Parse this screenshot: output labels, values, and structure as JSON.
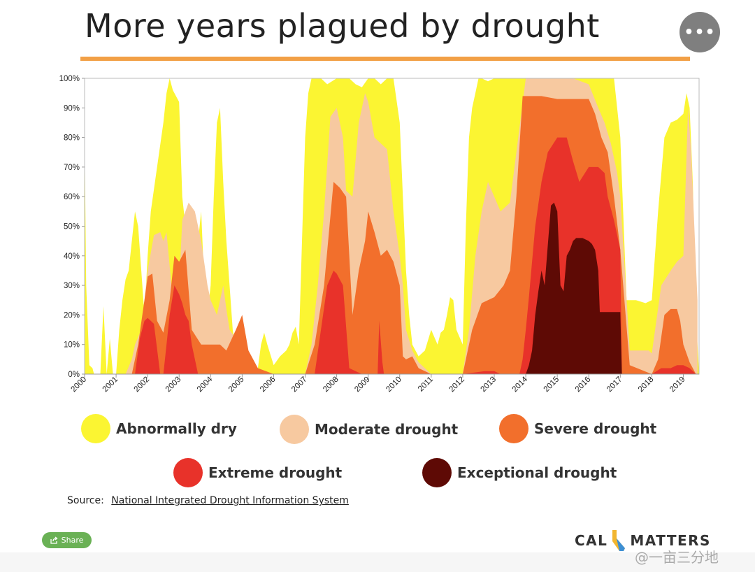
{
  "title": "More years plagued by drought",
  "menu_icon": "•••",
  "chart_data": {
    "type": "area",
    "stacked_cumulative": true,
    "x_unit": "year",
    "xlim": [
      2000,
      2019.5
    ],
    "ylim": [
      0,
      100
    ],
    "y_ticks": [
      "0%",
      "10%",
      "20%",
      "30%",
      "40%",
      "50%",
      "60%",
      "70%",
      "80%",
      "90%",
      "100%"
    ],
    "y_tick_values": [
      0,
      10,
      20,
      30,
      40,
      50,
      60,
      70,
      80,
      90,
      100
    ],
    "x_ticks": [
      "2000",
      "2001",
      "2002",
      "2003",
      "2004",
      "2005",
      "2006",
      "2007",
      "2008",
      "2009",
      "2010",
      "2011",
      "2012",
      "2013",
      "2014",
      "2015",
      "2016",
      "2017",
      "2018",
      "2019"
    ],
    "x_tick_values": [
      2000,
      2001,
      2002,
      2003,
      2004,
      2005,
      2006,
      2007,
      2008,
      2009,
      2010,
      2011,
      2012,
      2013,
      2014,
      2015,
      2016,
      2017,
      2018,
      2019
    ],
    "series": [
      {
        "name": "Abnormally dry",
        "color": "#fbf532",
        "x": [
          2000,
          2000.05,
          2000.15,
          2000.25,
          2000.3,
          2000.5,
          2000.6,
          2000.7,
          2000.8,
          2000.9,
          2001.0,
          2001.1,
          2001.2,
          2001.3,
          2001.4,
          2001.5,
          2001.6,
          2001.7,
          2001.8,
          2001.9,
          2002.0,
          2002.1,
          2002.3,
          2002.5,
          2002.6,
          2002.7,
          2002.8,
          2003.0,
          2003.1,
          2003.3,
          2003.5,
          2003.6,
          2003.7,
          2003.8,
          2003.9,
          2004.0,
          2004.1,
          2004.2,
          2004.3,
          2004.4,
          2004.5,
          2004.6,
          2004.7,
          2004.8,
          2004.9,
          2005.0,
          2005.1,
          2005.2,
          2005.3,
          2005.4,
          2005.5,
          2005.6,
          2005.7,
          2005.8,
          2006.0,
          2006.2,
          2006.4,
          2006.5,
          2006.6,
          2006.7,
          2006.8,
          2007.0,
          2007.1,
          2007.2,
          2007.3,
          2007.5,
          2007.7,
          2008.0,
          2008.2,
          2008.4,
          2008.6,
          2008.8,
          2009.0,
          2009.2,
          2009.4,
          2009.6,
          2009.8,
          2010.0,
          2010.1,
          2010.2,
          2010.3,
          2010.4,
          2010.5,
          2010.6,
          2010.8,
          2011.0,
          2011.2,
          2011.3,
          2011.4,
          2011.5,
          2011.6,
          2011.7,
          2011.8,
          2012.0,
          2012.1,
          2012.2,
          2012.3,
          2012.4,
          2012.5,
          2012.6,
          2012.8,
          2013.0,
          2013.2,
          2013.4,
          2013.6,
          2013.8,
          2014.0,
          2014.5,
          2015.0,
          2015.5,
          2016.0,
          2016.3,
          2016.5,
          2016.7,
          2016.8,
          2016.9,
          2017.0,
          2017.2,
          2017.5,
          2017.8,
          2018.0,
          2018.2,
          2018.4,
          2018.6,
          2018.8,
          2019.0,
          2019.1,
          2019.2,
          2019.3,
          2019.4,
          2019.5
        ],
        "cumulative_values": [
          80,
          30,
          3,
          2,
          0,
          0,
          23,
          0,
          12,
          0,
          0,
          15,
          25,
          32,
          35,
          45,
          55,
          50,
          35,
          20,
          40,
          55,
          70,
          85,
          95,
          100,
          96,
          92,
          60,
          40,
          30,
          45,
          55,
          30,
          20,
          30,
          60,
          85,
          90,
          65,
          45,
          30,
          15,
          8,
          4,
          2,
          0,
          0,
          0,
          0,
          2,
          10,
          14,
          10,
          3,
          6,
          8,
          10,
          14,
          16,
          10,
          80,
          95,
          100,
          100,
          100,
          98,
          100,
          100,
          100,
          98,
          97,
          100,
          100,
          98,
          100,
          100,
          85,
          60,
          35,
          20,
          10,
          8,
          6,
          8,
          15,
          10,
          14,
          15,
          20,
          26,
          25,
          15,
          10,
          50,
          80,
          90,
          95,
          100,
          100,
          99,
          100,
          100,
          100,
          100,
          100,
          100,
          100,
          100,
          100,
          100,
          100,
          100,
          100,
          100,
          90,
          80,
          25,
          25,
          24,
          25,
          55,
          80,
          85,
          86,
          88,
          95,
          90,
          65,
          20,
          0
        ],
        "_note": "Values read as cumulative top edge of the stacked area (percent of state)."
      },
      {
        "name": "Moderate drought",
        "color": "#f7c9a0",
        "x": [
          2000,
          2001.0,
          2001.3,
          2001.5,
          2001.6,
          2001.8,
          2002.0,
          2002.2,
          2002.4,
          2002.5,
          2002.6,
          2002.8,
          2003.0,
          2003.1,
          2003.3,
          2003.5,
          2003.7,
          2003.9,
          2004.0,
          2004.2,
          2004.4,
          2004.5,
          2004.6,
          2004.8,
          2005.0,
          2005.1,
          2005.3,
          2005.6,
          2006.0,
          2006.5,
          2007.0,
          2007.2,
          2007.4,
          2007.6,
          2007.8,
          2008.0,
          2008.2,
          2008.3,
          2008.5,
          2008.7,
          2008.9,
          2009.0,
          2009.2,
          2009.4,
          2009.6,
          2009.8,
          2010.0,
          2010.1,
          2010.2,
          2010.4,
          2010.6,
          2010.8,
          2011.0,
          2011.5,
          2012.0,
          2012.2,
          2012.4,
          2012.6,
          2012.8,
          2013.0,
          2013.2,
          2013.5,
          2014.0,
          2014.5,
          2015.0,
          2015.5,
          2016.0,
          2016.3,
          2016.5,
          2016.7,
          2016.9,
          2017.0,
          2017.3,
          2017.6,
          2017.9,
          2018.0,
          2018.3,
          2018.6,
          2018.8,
          2019.0,
          2019.15,
          2019.25,
          2019.35,
          2019.45
        ],
        "cumulative_values": [
          0,
          0,
          0,
          5,
          10,
          15,
          35,
          47,
          48,
          45,
          48,
          25,
          30,
          52,
          58,
          55,
          45,
          30,
          25,
          20,
          30,
          22,
          15,
          12,
          3,
          0,
          0,
          0,
          0,
          0,
          0,
          10,
          30,
          55,
          87,
          90,
          80,
          62,
          60,
          85,
          95,
          92,
          80,
          78,
          76,
          55,
          40,
          30,
          15,
          8,
          4,
          2,
          0,
          0,
          0,
          15,
          40,
          55,
          65,
          60,
          55,
          58,
          100,
          100,
          100,
          100,
          98,
          90,
          85,
          78,
          68,
          60,
          8,
          8,
          8,
          7,
          30,
          35,
          38,
          40,
          90,
          75,
          50,
          25
        ],
        "_note": "Cumulative top edge of moderate (and worse) drought."
      },
      {
        "name": "Severe drought",
        "color": "#f26f2c",
        "x": [
          2000,
          2001.5,
          2001.7,
          2001.9,
          2002.0,
          2002.15,
          2002.3,
          2002.5,
          2002.7,
          2002.85,
          2003.0,
          2003.2,
          2003.4,
          2003.7,
          2004.0,
          2004.3,
          2004.5,
          2004.8,
          2005.0,
          2005.2,
          2005.5,
          2006.0,
          2007.0,
          2007.3,
          2007.6,
          2007.9,
          2008.1,
          2008.3,
          2008.5,
          2008.7,
          2008.9,
          2009.0,
          2009.2,
          2009.4,
          2009.6,
          2009.8,
          2010.0,
          2010.1,
          2010.2,
          2010.4,
          2010.6,
          2011.0,
          2012.0,
          2012.3,
          2012.6,
          2013.0,
          2013.3,
          2013.5,
          2013.7,
          2013.9,
          2014.0,
          2014.5,
          2015.0,
          2015.5,
          2016.0,
          2016.2,
          2016.4,
          2016.6,
          2016.8,
          2017.0,
          2017.3,
          2018.0,
          2018.2,
          2018.4,
          2018.6,
          2018.8,
          2018.9,
          2019.0,
          2019.2,
          2019.3,
          2019.4
        ],
        "cumulative_values": [
          0,
          0,
          10,
          25,
          33,
          34,
          18,
          14,
          25,
          40,
          38,
          42,
          15,
          10,
          10,
          10,
          8,
          15,
          20,
          8,
          2,
          0,
          0,
          10,
          30,
          65,
          63,
          60,
          20,
          35,
          45,
          55,
          48,
          40,
          42,
          38,
          30,
          6,
          5,
          6,
          2,
          0,
          0,
          15,
          24,
          26,
          30,
          35,
          60,
          94,
          94,
          94,
          93,
          93,
          93,
          88,
          80,
          75,
          60,
          42,
          3,
          0,
          5,
          20,
          22,
          22,
          18,
          10,
          4,
          2,
          0
        ],
        "_note": "Cumulative top edge of severe (and worse) drought."
      },
      {
        "name": "Extreme drought",
        "color": "#e8322a",
        "x": [
          2000,
          2001.6,
          2001.75,
          2001.9,
          2002.0,
          2002.1,
          2002.2,
          2002.4,
          2002.5,
          2002.7,
          2002.85,
          2003.0,
          2003.1,
          2003.2,
          2003.3,
          2003.4,
          2003.6,
          2006.0,
          2007.0,
          2007.3,
          2007.5,
          2007.7,
          2007.9,
          2008.0,
          2008.2,
          2008.4,
          2008.8,
          2009.3,
          2009.35,
          2009.45,
          2009.5,
          2010.0,
          2012.0,
          2012.7,
          2012.8,
          2013.0,
          2013.2,
          2013.8,
          2013.9,
          2014.0,
          2014.1,
          2014.3,
          2014.5,
          2014.7,
          2015.0,
          2015.3,
          2015.5,
          2015.7,
          2016.0,
          2016.3,
          2016.5,
          2016.6,
          2016.8,
          2017.0,
          2017.05,
          2018.0,
          2018.3,
          2018.6,
          2018.8,
          2019.0,
          2019.2,
          2019.4
        ],
        "cumulative_values": [
          0,
          0,
          12,
          18,
          19,
          18,
          17,
          0,
          0,
          20,
          30,
          27,
          24,
          20,
          18,
          10,
          0,
          0,
          0,
          0,
          15,
          30,
          35,
          34,
          30,
          2,
          0,
          0,
          18,
          4,
          0,
          0,
          0,
          1,
          1,
          1,
          0,
          0,
          5,
          15,
          26,
          50,
          65,
          75,
          80,
          80,
          72,
          65,
          70,
          70,
          68,
          60,
          52,
          42,
          0,
          0,
          2,
          2,
          3,
          3,
          2,
          0
        ],
        "_note": "Cumulative top edge of extreme (and worse) drought."
      },
      {
        "name": "Exceptional drought",
        "color": "#5e0a05",
        "x": [
          2000,
          2014.0,
          2014.1,
          2014.2,
          2014.3,
          2014.4,
          2014.5,
          2014.6,
          2014.8,
          2014.9,
          2015.0,
          2015.1,
          2015.2,
          2015.3,
          2015.4,
          2015.5,
          2015.6,
          2015.8,
          2016.0,
          2016.1,
          2016.2,
          2016.3,
          2016.35,
          2016.5,
          2016.7,
          2016.9,
          2017.0,
          2017.05
        ],
        "cumulative_values": [
          0,
          0,
          3,
          8,
          20,
          28,
          35,
          30,
          57,
          58,
          55,
          30,
          28,
          40,
          42,
          45,
          46,
          46,
          45,
          44,
          42,
          35,
          21,
          21,
          21,
          21,
          21,
          0
        ],
        "_note": "Top edge of exceptional drought."
      }
    ]
  },
  "legend": [
    {
      "label": "Abnormally dry",
      "color": "#fbf532"
    },
    {
      "label": "Moderate drought",
      "color": "#f7c9a0"
    },
    {
      "label": "Severe drought",
      "color": "#f26f2c"
    },
    {
      "label": "Extreme drought",
      "color": "#e8322a"
    },
    {
      "label": "Exceptional drought",
      "color": "#5e0a05"
    }
  ],
  "source": {
    "prefix": "Source:",
    "link_text": "National Integrated Drought Information System"
  },
  "share_label": "Share",
  "logo": {
    "left": "CAL",
    "right": "MATTERS"
  },
  "watermark": "@一亩三分地",
  "colors": {
    "accent_rule": "#f2a046",
    "share_green": "#6ab155",
    "menu_grey": "#7f7f7f"
  }
}
